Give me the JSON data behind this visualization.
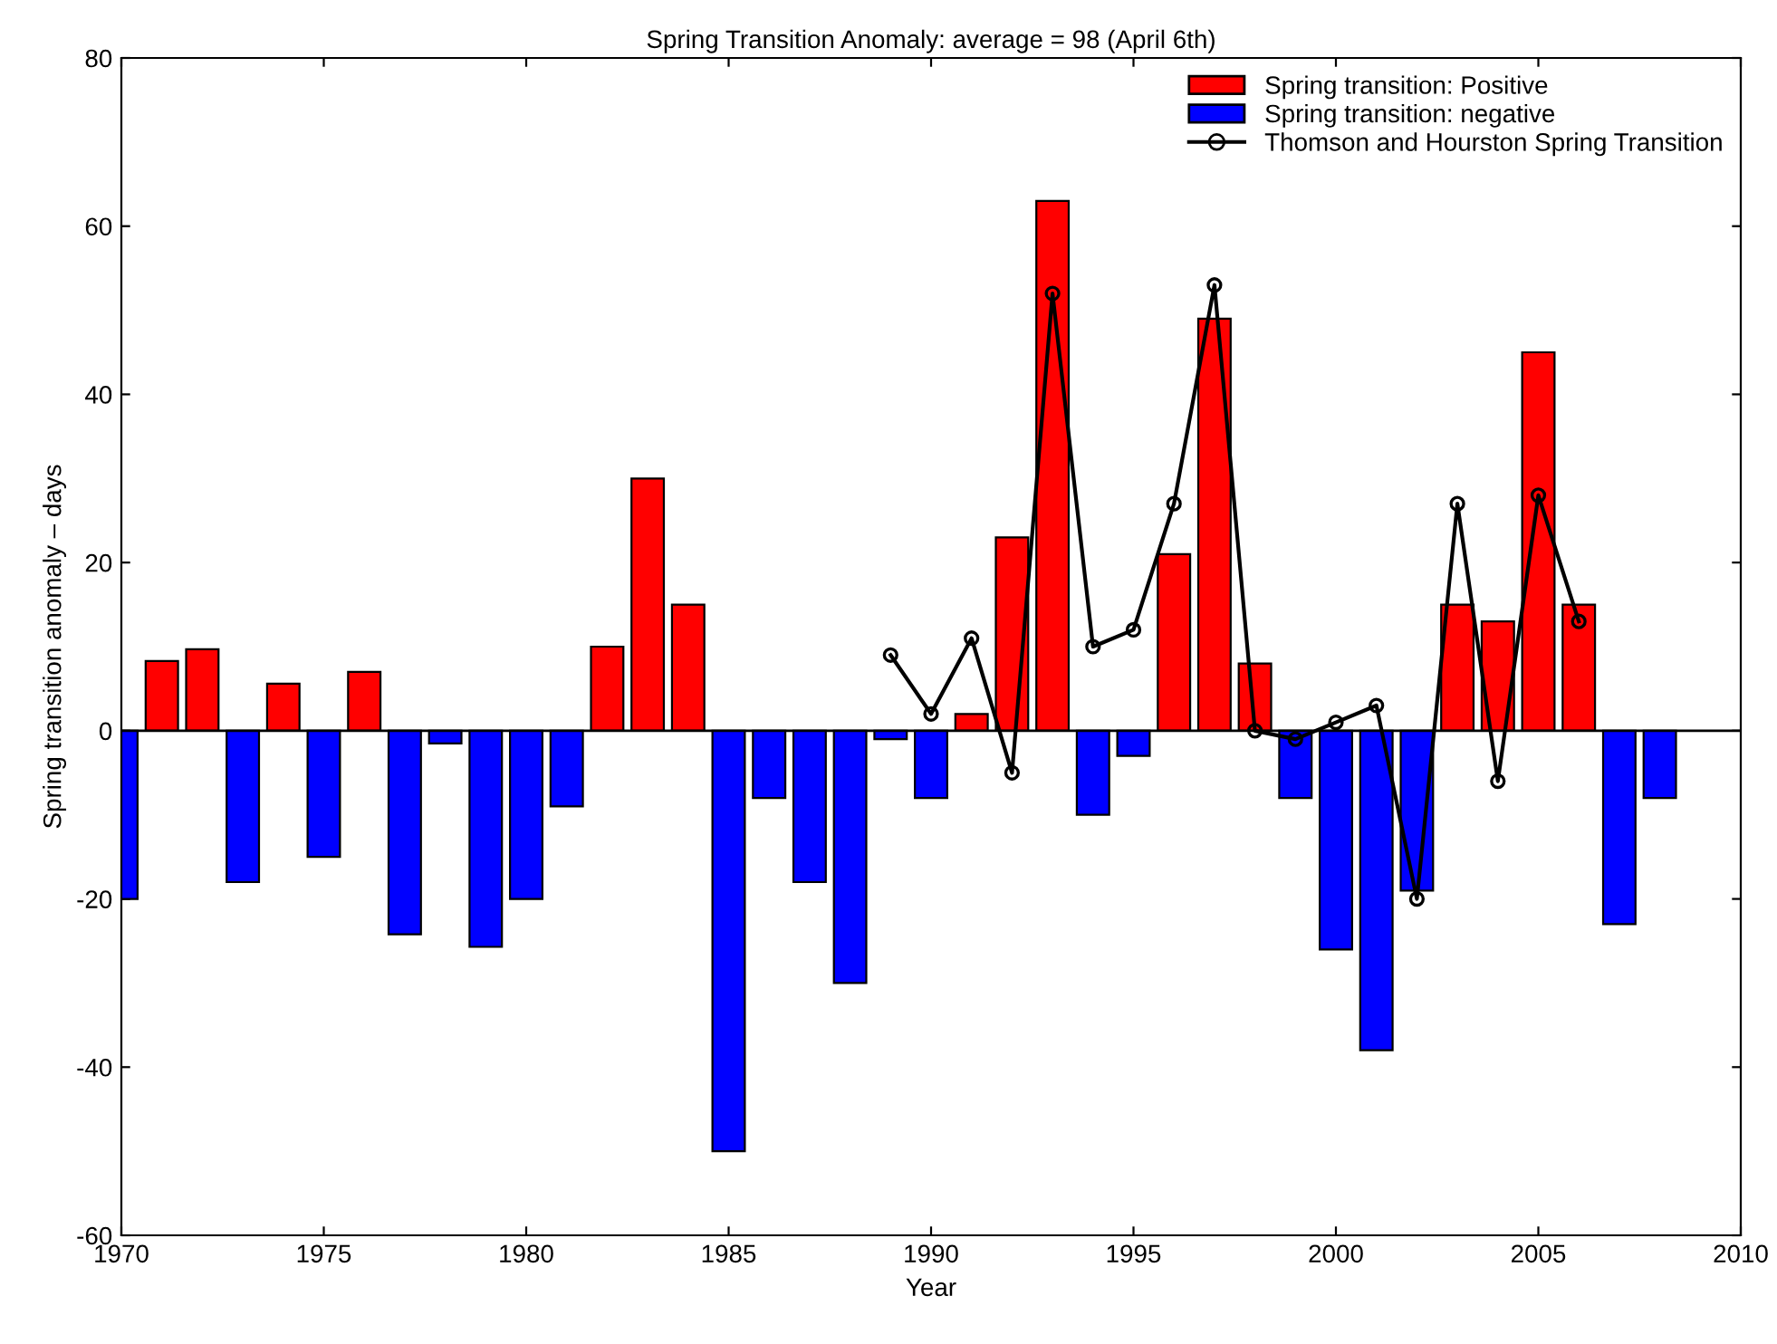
{
  "chart_data": {
    "type": "bar",
    "title": "Spring Transition Anomaly: average = 98 (April 6th)",
    "xlabel": "Year",
    "ylabel": "Spring transition anomaly – days",
    "x": [
      1970,
      1971,
      1972,
      1973,
      1974,
      1975,
      1976,
      1977,
      1978,
      1979,
      1980,
      1981,
      1982,
      1983,
      1984,
      1985,
      1986,
      1987,
      1988,
      1989,
      1990,
      1991,
      1992,
      1993,
      1994,
      1995,
      1996,
      1997,
      1998,
      1999,
      2000,
      2001,
      2002,
      2003,
      2004,
      2005,
      2006,
      2007,
      2008
    ],
    "series": [
      {
        "name": "Spring transition: Positive",
        "color": "#ff0000",
        "values": [
          null,
          8.3,
          9.7,
          null,
          5.6,
          null,
          7,
          null,
          null,
          null,
          null,
          null,
          10,
          30,
          15,
          null,
          null,
          null,
          null,
          null,
          null,
          2,
          23,
          63,
          null,
          null,
          21,
          49,
          8,
          null,
          null,
          null,
          null,
          15,
          13,
          45,
          15,
          null,
          null
        ]
      },
      {
        "name": "Spring transition: negative",
        "color": "#0000ff",
        "values": [
          -20,
          null,
          null,
          -18,
          null,
          -15,
          null,
          -24.2,
          -1.5,
          -25.7,
          -20,
          -9,
          null,
          null,
          null,
          -50,
          -8,
          -18,
          -30,
          -1,
          -8,
          null,
          null,
          null,
          -10,
          -3,
          null,
          null,
          null,
          -8,
          -26,
          -38,
          -19,
          null,
          null,
          null,
          null,
          -23,
          -8
        ]
      },
      {
        "name": "Thomson and Hourston Spring Transition",
        "type": "line",
        "color": "#000000",
        "marker": "circle",
        "x": [
          1989,
          1990,
          1991,
          1992,
          1993,
          1994,
          1995,
          1996,
          1997,
          1998,
          1999,
          2000,
          2001,
          2002,
          2003,
          2004,
          2005,
          2006
        ],
        "values": [
          9,
          2,
          11,
          -5,
          52,
          10,
          12,
          27,
          53,
          0,
          -1,
          1,
          3,
          -20,
          27,
          -6,
          28,
          13
        ]
      }
    ],
    "xlim": [
      1970,
      2010
    ],
    "xticks": [
      1970,
      1975,
      1980,
      1985,
      1990,
      1995,
      2000,
      2005,
      2010
    ],
    "ylim": [
      -60,
      80
    ],
    "yticks": [
      -60,
      -40,
      -20,
      0,
      20,
      40,
      60,
      80
    ],
    "ref_lines": [
      {
        "axis": "y",
        "value": 0,
        "color": "#000000"
      }
    ],
    "legend": "top right"
  }
}
